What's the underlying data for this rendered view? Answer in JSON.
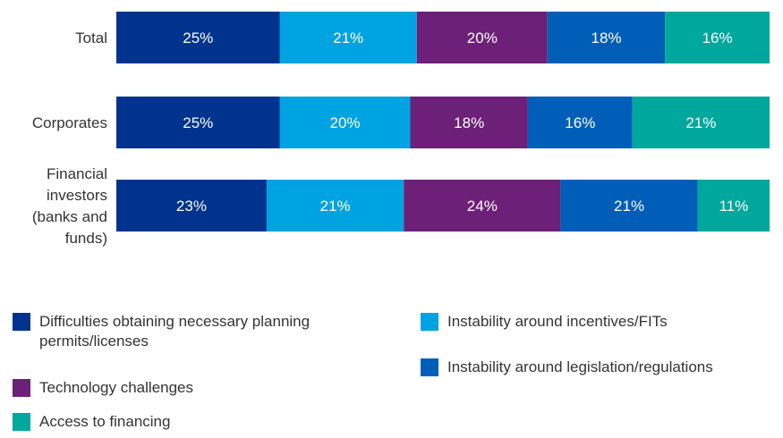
{
  "chart_data": {
    "type": "bar",
    "orientation": "horizontal",
    "stacked": true,
    "title": "",
    "xlabel": "",
    "ylabel": "",
    "categories": [
      "Total",
      "Corporates",
      "Financial investors (banks and funds)"
    ],
    "category_lines": [
      [
        "Total"
      ],
      [
        "Corporates"
      ],
      [
        "Financial",
        "investors",
        "(banks and",
        "funds)"
      ]
    ],
    "series": [
      {
        "name": "Difficulties obtaining necessary planning permits/licenses",
        "color": "#00338D",
        "values": [
          25,
          25,
          23
        ],
        "labels": [
          "25%",
          "25%",
          "23%"
        ]
      },
      {
        "name": "Instability around incentives/FITs",
        "color": "#00A3E1",
        "values": [
          21,
          20,
          21
        ],
        "labels": [
          "21%",
          "20%",
          "21%"
        ]
      },
      {
        "name": "Technology challenges",
        "color": "#6D2077",
        "values": [
          20,
          18,
          24
        ],
        "labels": [
          "20%",
          "18%",
          "24%"
        ]
      },
      {
        "name": "Instability around legislation/regulations",
        "color": "#005EB8",
        "values": [
          18,
          16,
          21
        ],
        "labels": [
          "18%",
          "16%",
          "21%"
        ]
      },
      {
        "name": "Access to financing",
        "color": "#00A79D",
        "values": [
          16,
          21,
          11
        ],
        "labels": [
          "16%",
          "21%",
          "11%"
        ]
      }
    ],
    "legend": {
      "placement": "bottom",
      "left_column": [
        {
          "series": 0,
          "lines": [
            "Difficulties obtaining necessary planning",
            "permits/licenses"
          ]
        },
        {
          "series": 2,
          "lines": [
            "Technology challenges"
          ]
        },
        {
          "series": 4,
          "lines": [
            "Access to financing"
          ]
        }
      ],
      "right_column": [
        {
          "series": 1,
          "lines": [
            "Instability around incentives/FITs"
          ]
        },
        {
          "series": 3,
          "lines": [
            "Instability around legislation/regulations"
          ]
        }
      ]
    },
    "grid": false
  }
}
